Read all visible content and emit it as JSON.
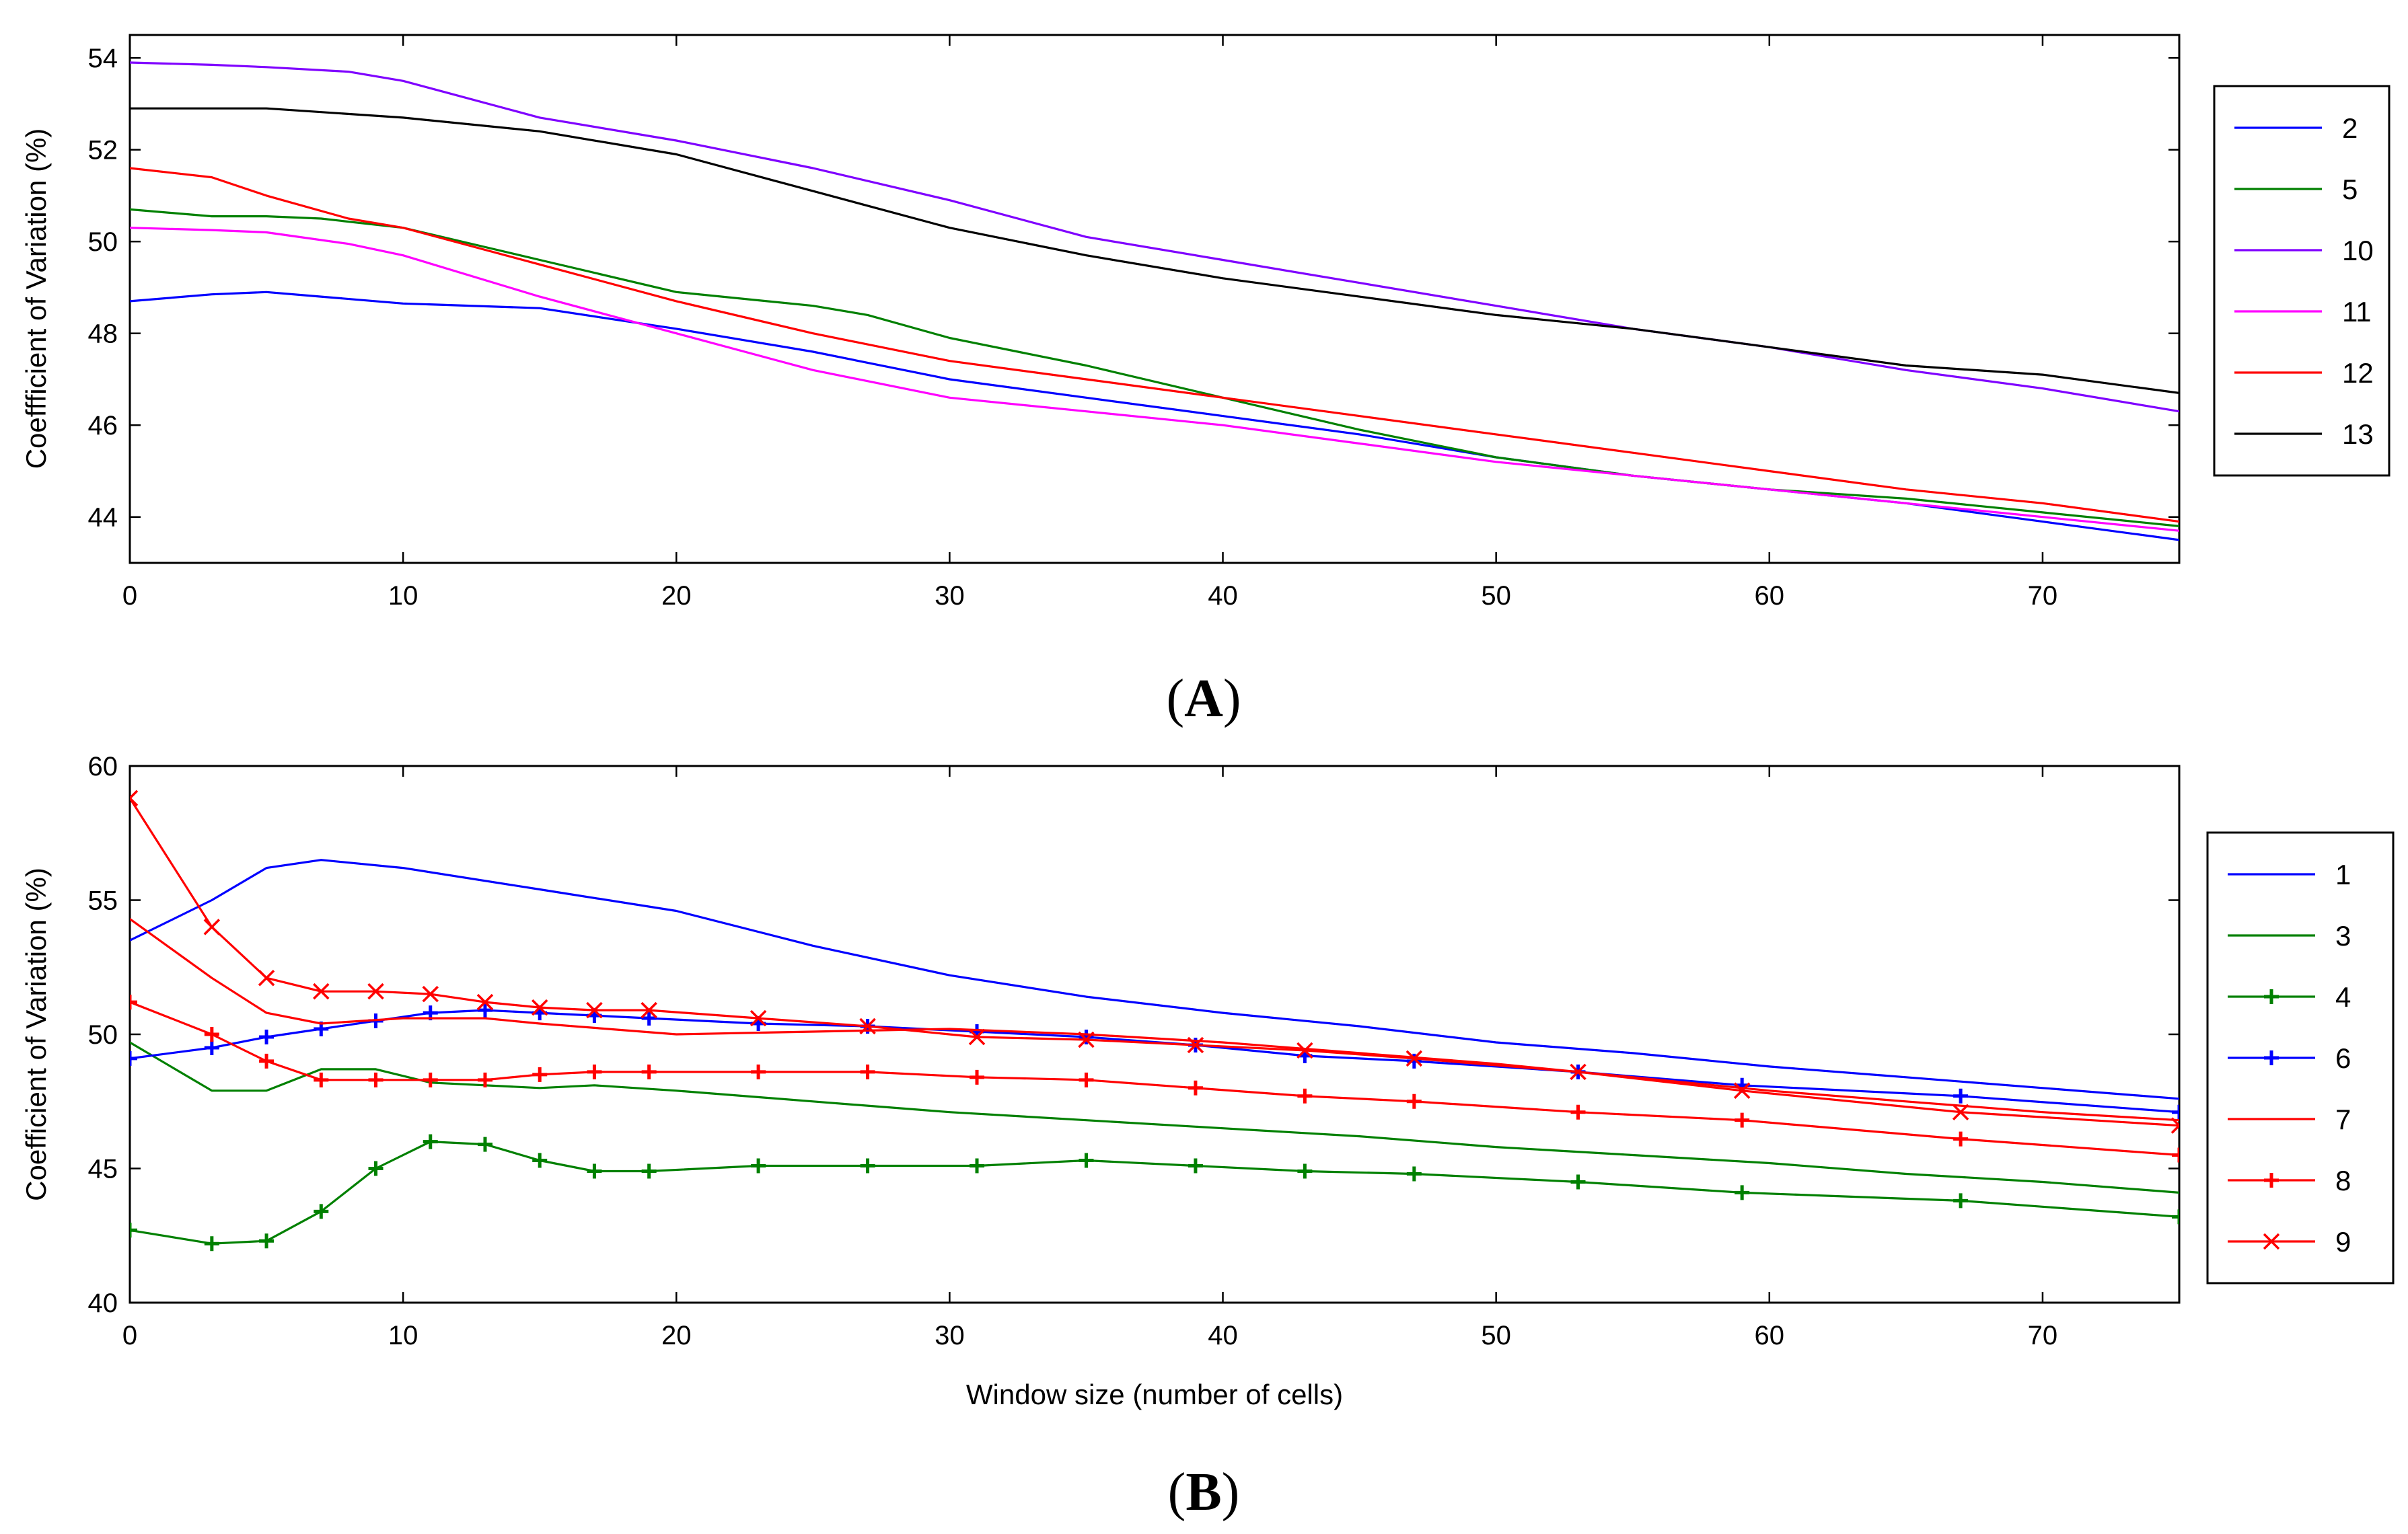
{
  "chart_data": [
    {
      "type": "line",
      "panel": "A",
      "caption": {
        "open": "(",
        "letter": "A",
        "close": ")"
      },
      "xlabel": "",
      "ylabel": "Coeffficient of Variation (%)",
      "xlim": [
        0,
        75
      ],
      "ylim": [
        43,
        54.5
      ],
      "xticks": [
        0,
        10,
        20,
        30,
        40,
        50,
        60,
        70
      ],
      "yticks": [
        44,
        46,
        48,
        50,
        52,
        54
      ],
      "legend_position": "right",
      "series": [
        {
          "name": "2",
          "color": "#0000ff",
          "marker": "none",
          "x": [
            0,
            3,
            5,
            7,
            10,
            15,
            20,
            25,
            30,
            35,
            40,
            45,
            50,
            55,
            60,
            65,
            70,
            75
          ],
          "y": [
            48.7,
            48.85,
            48.9,
            48.8,
            48.65,
            48.55,
            48.1,
            47.6,
            47.0,
            46.6,
            46.2,
            45.8,
            45.3,
            44.9,
            44.6,
            44.3,
            43.9,
            43.5
          ]
        },
        {
          "name": "5",
          "color": "#008000",
          "marker": "none",
          "x": [
            0,
            3,
            5,
            7,
            10,
            15,
            20,
            25,
            27,
            30,
            35,
            40,
            45,
            50,
            55,
            60,
            65,
            70,
            75
          ],
          "y": [
            50.7,
            50.55,
            50.55,
            50.5,
            50.3,
            49.6,
            48.9,
            48.6,
            48.4,
            47.9,
            47.3,
            46.6,
            45.9,
            45.3,
            44.9,
            44.6,
            44.4,
            44.1,
            43.8
          ]
        },
        {
          "name": "10",
          "color": "#7f00ff",
          "marker": "none",
          "x": [
            0,
            3,
            5,
            8,
            10,
            15,
            20,
            25,
            30,
            35,
            40,
            45,
            50,
            55,
            60,
            65,
            70,
            75
          ],
          "y": [
            53.9,
            53.85,
            53.8,
            53.7,
            53.5,
            52.7,
            52.2,
            51.6,
            50.9,
            50.1,
            49.6,
            49.1,
            48.6,
            48.1,
            47.7,
            47.2,
            46.8,
            46.3
          ]
        },
        {
          "name": "11",
          "color": "#ff00ff",
          "marker": "none",
          "x": [
            0,
            3,
            5,
            8,
            10,
            15,
            20,
            25,
            30,
            35,
            40,
            45,
            50,
            55,
            60,
            65,
            70,
            75
          ],
          "y": [
            50.3,
            50.25,
            50.2,
            49.95,
            49.7,
            48.8,
            48.0,
            47.2,
            46.6,
            46.3,
            46.0,
            45.6,
            45.2,
            44.9,
            44.6,
            44.3,
            44.0,
            43.7
          ]
        },
        {
          "name": "12",
          "color": "#ff0000",
          "marker": "none",
          "x": [
            0,
            3,
            5,
            8,
            10,
            15,
            20,
            25,
            30,
            35,
            40,
            45,
            50,
            55,
            60,
            65,
            70,
            75
          ],
          "y": [
            51.6,
            51.4,
            51.0,
            50.5,
            50.3,
            49.5,
            48.7,
            48.0,
            47.4,
            47.0,
            46.6,
            46.2,
            45.8,
            45.4,
            45.0,
            44.6,
            44.3,
            43.9
          ]
        },
        {
          "name": "13",
          "color": "#000000",
          "marker": "none",
          "x": [
            0,
            5,
            10,
            15,
            20,
            25,
            30,
            35,
            40,
            45,
            50,
            55,
            60,
            65,
            70,
            75
          ],
          "y": [
            52.9,
            52.9,
            52.7,
            52.4,
            51.9,
            51.1,
            50.3,
            49.7,
            49.2,
            48.8,
            48.4,
            48.1,
            47.7,
            47.3,
            47.1,
            46.7
          ]
        }
      ]
    },
    {
      "type": "line",
      "panel": "B",
      "caption": {
        "open": "(",
        "letter": "B",
        "close": ")"
      },
      "xlabel": "Window size (number of cells)",
      "ylabel": "Coefficient of Variation (%)",
      "xlim": [
        0,
        75
      ],
      "ylim": [
        40,
        60
      ],
      "xticks": [
        0,
        10,
        20,
        30,
        40,
        50,
        60,
        70
      ],
      "yticks": [
        40,
        45,
        50,
        55,
        60
      ],
      "legend_position": "right",
      "series": [
        {
          "name": "1",
          "color": "#0000ff",
          "marker": "none",
          "x": [
            0,
            3,
            5,
            7,
            10,
            15,
            20,
            25,
            30,
            35,
            40,
            45,
            50,
            55,
            60,
            65,
            70,
            75
          ],
          "y": [
            53.5,
            55.0,
            56.2,
            56.5,
            56.2,
            55.4,
            54.6,
            53.3,
            52.2,
            51.4,
            50.8,
            50.3,
            49.7,
            49.3,
            48.8,
            48.4,
            48.0,
            47.6
          ]
        },
        {
          "name": "3",
          "color": "#008000",
          "marker": "none",
          "x": [
            0,
            3,
            5,
            7,
            9,
            11,
            15,
            17,
            20,
            25,
            30,
            35,
            40,
            45,
            50,
            55,
            60,
            65,
            70,
            75
          ],
          "y": [
            49.7,
            47.9,
            47.9,
            48.7,
            48.7,
            48.2,
            48.0,
            48.1,
            47.9,
            47.5,
            47.1,
            46.8,
            46.5,
            46.2,
            45.8,
            45.5,
            45.2,
            44.8,
            44.5,
            44.1
          ]
        },
        {
          "name": "4",
          "color": "#008000",
          "marker": "plus",
          "x": [
            0,
            3,
            5,
            7,
            9,
            11,
            13,
            15,
            17,
            19,
            23,
            27,
            31,
            35,
            39,
            43,
            47,
            53,
            59,
            67,
            75
          ],
          "y": [
            42.7,
            42.2,
            42.3,
            43.4,
            45.0,
            46.0,
            45.9,
            45.3,
            44.9,
            44.9,
            45.1,
            45.1,
            45.1,
            45.3,
            45.1,
            44.9,
            44.8,
            44.5,
            44.1,
            43.8,
            43.2
          ]
        },
        {
          "name": "6",
          "color": "#0000ff",
          "marker": "plus",
          "x": [
            0,
            3,
            5,
            7,
            9,
            11,
            13,
            15,
            17,
            19,
            23,
            27,
            31,
            35,
            39,
            43,
            47,
            53,
            59,
            67,
            75
          ],
          "y": [
            49.1,
            49.5,
            49.9,
            50.2,
            50.5,
            50.8,
            50.9,
            50.8,
            50.7,
            50.6,
            50.4,
            50.3,
            50.1,
            49.9,
            49.6,
            49.2,
            49.0,
            48.6,
            48.1,
            47.7,
            47.1
          ]
        },
        {
          "name": "7",
          "color": "#ff0000",
          "marker": "none",
          "x": [
            0,
            3,
            5,
            7,
            10,
            13,
            15,
            20,
            25,
            30,
            35,
            40,
            45,
            50,
            55,
            60,
            65,
            70,
            75
          ],
          "y": [
            54.3,
            52.1,
            50.8,
            50.4,
            50.6,
            50.6,
            50.4,
            50.0,
            50.1,
            50.2,
            50.0,
            49.7,
            49.3,
            48.9,
            48.4,
            47.9,
            47.5,
            47.1,
            46.8
          ]
        },
        {
          "name": "8",
          "color": "#ff0000",
          "marker": "plus",
          "x": [
            0,
            3,
            5,
            7,
            9,
            11,
            13,
            15,
            17,
            19,
            23,
            27,
            31,
            35,
            39,
            43,
            47,
            53,
            59,
            67,
            75
          ],
          "y": [
            51.2,
            50.0,
            49.0,
            48.3,
            48.3,
            48.3,
            48.3,
            48.5,
            48.6,
            48.6,
            48.6,
            48.6,
            48.4,
            48.3,
            48.0,
            47.7,
            47.5,
            47.1,
            46.8,
            46.1,
            45.5
          ]
        },
        {
          "name": "9",
          "color": "#ff0000",
          "marker": "x",
          "x": [
            0,
            3,
            5,
            7,
            9,
            11,
            13,
            15,
            17,
            19,
            23,
            27,
            31,
            35,
            39,
            43,
            47,
            53,
            59,
            67,
            75
          ],
          "y": [
            58.8,
            54.0,
            52.1,
            51.6,
            51.6,
            51.5,
            51.2,
            51.0,
            50.9,
            50.9,
            50.6,
            50.3,
            49.9,
            49.8,
            49.6,
            49.4,
            49.1,
            48.6,
            47.9,
            47.1,
            46.6
          ]
        }
      ]
    }
  ]
}
